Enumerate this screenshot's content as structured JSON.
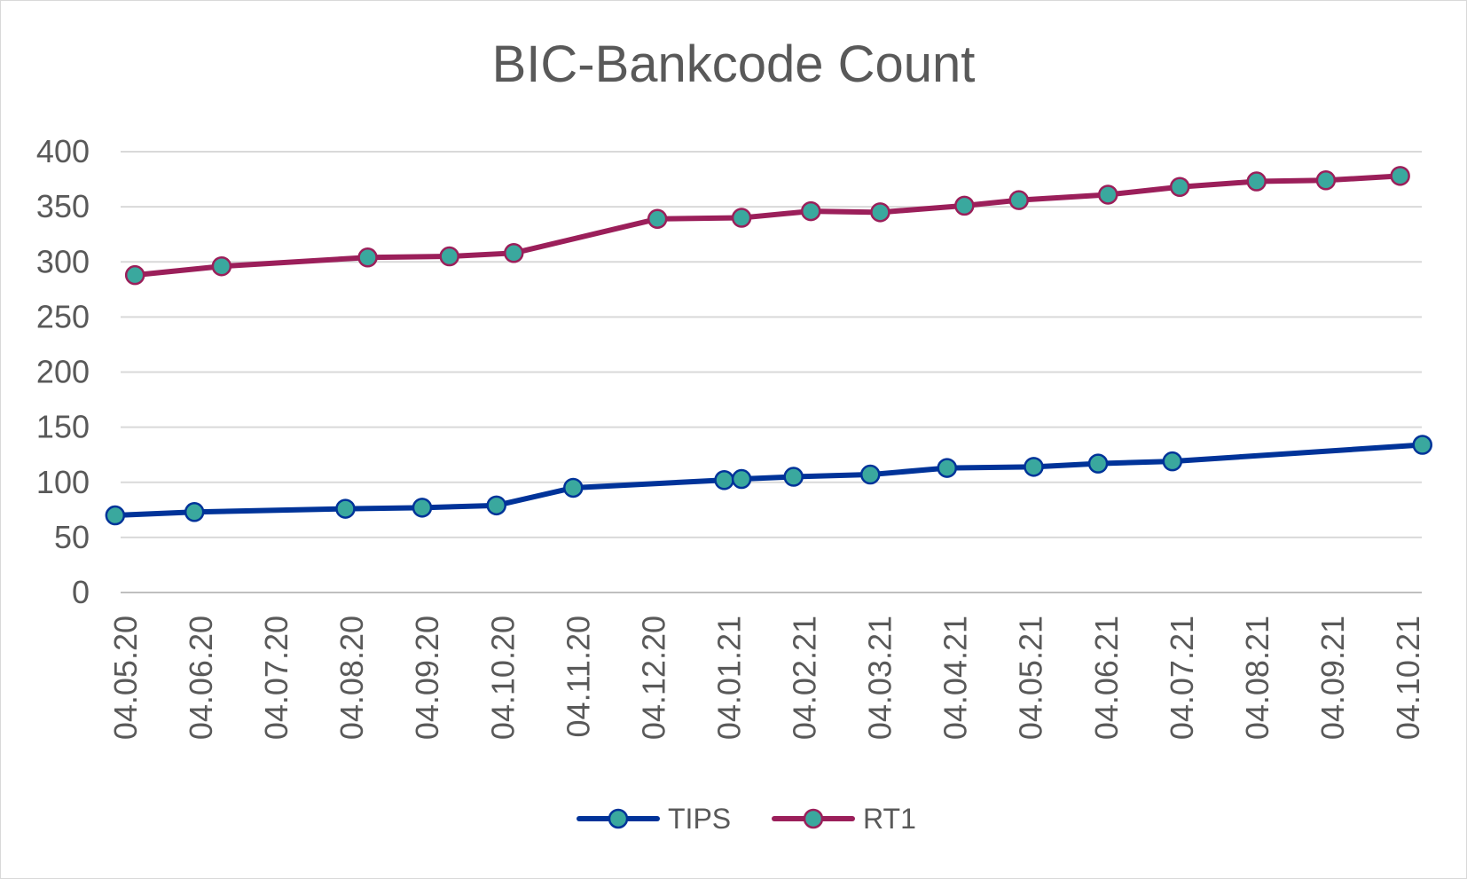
{
  "chart_data": {
    "type": "line",
    "title": "BIC-Bankcode Count",
    "xlabel": "",
    "ylabel": "",
    "ylim": [
      0,
      400
    ],
    "yticks": [
      0,
      50,
      100,
      150,
      200,
      250,
      300,
      350,
      400
    ],
    "xticks": [
      "04.05.20",
      "04.06.20",
      "04.07.20",
      "04.08.20",
      "04.09.20",
      "04.10.20",
      "04.11.20",
      "04.12.20",
      "04.01.21",
      "04.02.21",
      "04.03.21",
      "04.04.21",
      "04.05.21",
      "04.06.21",
      "04.07.21",
      "04.08.21",
      "04.09.21",
      "04.10.21"
    ],
    "xlim": [
      "2020-05-04",
      "2021-10-04"
    ],
    "grid": true,
    "legend_position": "bottom",
    "series": [
      {
        "name": "TIPS",
        "color": "#003399",
        "marker_color": "#3aa89e",
        "points": [
          {
            "x": "2020-04-30",
            "y": 70
          },
          {
            "x": "2020-06-01",
            "y": 73
          },
          {
            "x": "2020-08-01",
            "y": 76
          },
          {
            "x": "2020-09-01",
            "y": 77
          },
          {
            "x": "2020-10-01",
            "y": 79
          },
          {
            "x": "2020-11-01",
            "y": 95
          },
          {
            "x": "2021-01-01",
            "y": 102
          },
          {
            "x": "2021-01-08",
            "y": 103
          },
          {
            "x": "2021-01-29",
            "y": 105
          },
          {
            "x": "2021-03-01",
            "y": 107
          },
          {
            "x": "2021-04-01",
            "y": 113
          },
          {
            "x": "2021-05-06",
            "y": 114
          },
          {
            "x": "2021-06-01",
            "y": 117
          },
          {
            "x": "2021-07-01",
            "y": 119
          },
          {
            "x": "2021-10-10",
            "y": 134
          }
        ]
      },
      {
        "name": "RT1",
        "color": "#9b1f5a",
        "marker_color": "#3aa89e",
        "points": [
          {
            "x": "2020-05-08",
            "y": 288
          },
          {
            "x": "2020-06-12",
            "y": 296
          },
          {
            "x": "2020-08-10",
            "y": 304
          },
          {
            "x": "2020-09-12",
            "y": 305
          },
          {
            "x": "2020-10-08",
            "y": 308
          },
          {
            "x": "2020-12-05",
            "y": 339
          },
          {
            "x": "2021-01-08",
            "y": 340
          },
          {
            "x": "2021-02-05",
            "y": 346
          },
          {
            "x": "2021-03-05",
            "y": 345
          },
          {
            "x": "2021-04-08",
            "y": 351
          },
          {
            "x": "2021-04-30",
            "y": 356
          },
          {
            "x": "2021-06-05",
            "y": 361
          },
          {
            "x": "2021-07-04",
            "y": 368
          },
          {
            "x": "2021-08-04",
            "y": 373
          },
          {
            "x": "2021-09-01",
            "y": 374
          },
          {
            "x": "2021-10-01",
            "y": 378
          }
        ]
      }
    ]
  }
}
